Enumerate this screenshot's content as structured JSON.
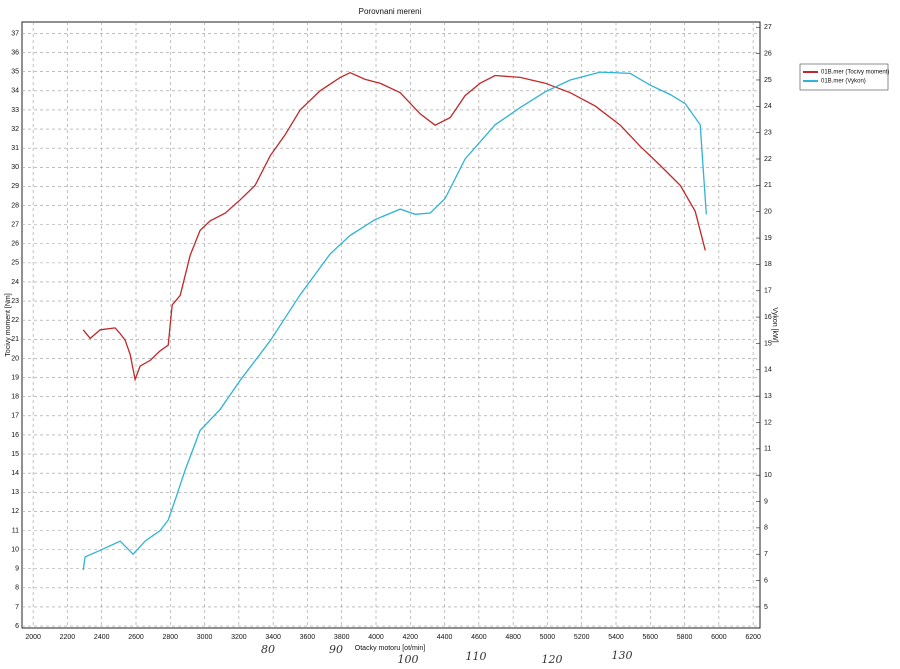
{
  "chart_data": {
    "type": "line",
    "title": "Porovnani mereni",
    "x_label": "Otacky motoru [ot/min]",
    "y_label": "Tocivy moment [Nm]",
    "y2_label": "Vykon [kW]",
    "xlim": [
      1935,
      6240
    ],
    "ylim": [
      5.9,
      37.6
    ],
    "y2lim": [
      4.2,
      27.2
    ],
    "xticks": [
      2000,
      2200,
      2400,
      2600,
      2800,
      3000,
      3200,
      3400,
      3600,
      3800,
      4000,
      4200,
      4400,
      4600,
      4800,
      5000,
      5200,
      5400,
      5600,
      5800,
      6000,
      6200
    ],
    "yticks": [
      6,
      7,
      8,
      9,
      10,
      11,
      12,
      13,
      14,
      15,
      16,
      17,
      18,
      19,
      20,
      21,
      22,
      23,
      24,
      25,
      26,
      27,
      28,
      29,
      30,
      31,
      32,
      33,
      34,
      35,
      36,
      37
    ],
    "y2ticks": [
      5,
      6,
      7,
      8,
      9,
      10,
      11,
      12,
      13,
      14,
      15,
      16,
      17,
      18,
      19,
      20,
      21,
      22,
      23,
      24,
      25,
      26,
      27
    ],
    "grid": true,
    "legend": "right",
    "series": [
      {
        "name": "01B.mer (Tocivy moment)",
        "color": "#c0282a",
        "x": [
          2292,
          2333,
          2391,
          2478,
          2508,
          2537,
          2566,
          2595,
          2624,
          2683,
          2741,
          2788,
          2811,
          2858,
          2916,
          2974,
          3033,
          3120,
          3208,
          3295,
          3383,
          3470,
          3558,
          3674,
          3791,
          3849,
          3937,
          4024,
          4141,
          4257,
          4345,
          4433,
          4520,
          4608,
          4695,
          4841,
          4987,
          5133,
          5279,
          5425,
          5541,
          5658,
          5775,
          5862,
          5921
        ],
        "values": [
          21.5,
          21.05,
          21.5,
          21.6,
          21.3,
          20.95,
          20.2,
          18.9,
          19.6,
          19.9,
          20.4,
          20.7,
          22.8,
          23.3,
          25.4,
          26.7,
          27.2,
          27.6,
          28.3,
          29.05,
          30.6,
          31.7,
          33.0,
          34.0,
          34.7,
          34.95,
          34.6,
          34.4,
          33.9,
          32.8,
          32.2,
          32.6,
          33.75,
          34.4,
          34.8,
          34.7,
          34.4,
          33.9,
          33.2,
          32.2,
          31.1,
          30.1,
          29.05,
          27.7,
          25.65
        ]
      },
      {
        "name": "01B.mer (Vykon)",
        "color": "#2fb3d6",
        "axis": "y2",
        "x": [
          2292,
          2303,
          2391,
          2508,
          2583,
          2653,
          2741,
          2788,
          2828,
          2887,
          2974,
          3091,
          3208,
          3383,
          3558,
          3733,
          3849,
          3995,
          4141,
          4228,
          4316,
          4403,
          4520,
          4695,
          4841,
          4987,
          5133,
          5308,
          5483,
          5600,
          5716,
          5804,
          5891,
          5927
        ],
        "values": [
          6.4,
          6.9,
          7.15,
          7.5,
          7.0,
          7.5,
          7.9,
          8.3,
          9.05,
          10.2,
          11.7,
          12.5,
          13.6,
          15.1,
          16.85,
          18.4,
          19.1,
          19.7,
          20.1,
          19.9,
          19.95,
          20.5,
          22.0,
          23.3,
          23.95,
          24.55,
          25.0,
          25.3,
          25.25,
          24.8,
          24.45,
          24.1,
          23.3,
          19.9
        ]
      }
    ],
    "annotations": [
      "80",
      "90",
      "100",
      "110",
      "120",
      "130"
    ]
  }
}
